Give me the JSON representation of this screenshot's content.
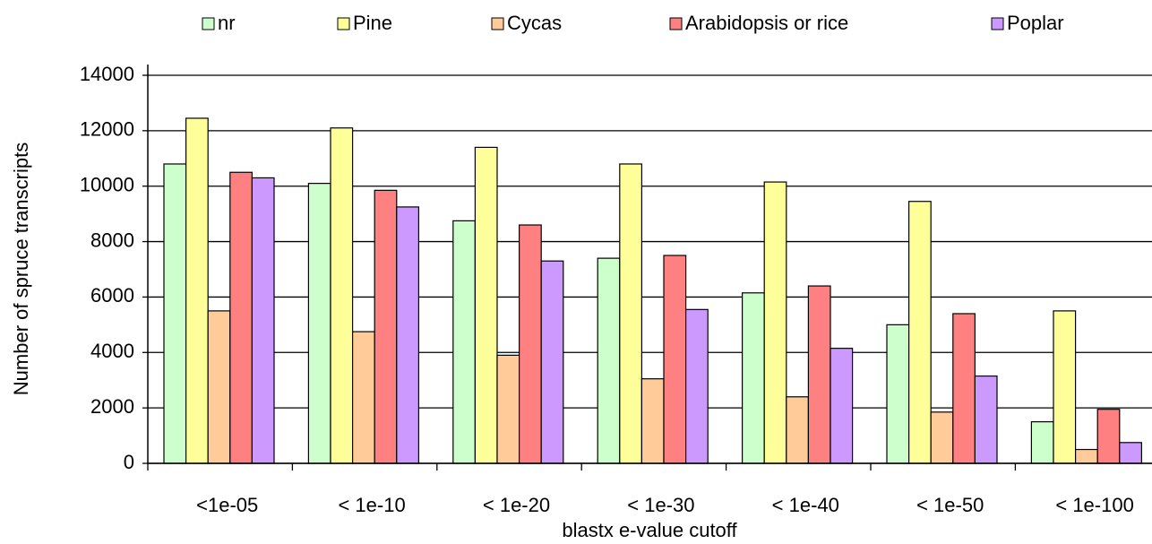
{
  "chart_data": {
    "type": "bar",
    "x_label": "blastx e-value cutoff",
    "y_label": "Number of spruce transcripts",
    "categories": [
      "<1e-05",
      "< 1e-10",
      "< 1e-20",
      "< 1e-30",
      "< 1e-40",
      "< 1e-50",
      "< 1e-100"
    ],
    "series": [
      {
        "name": "nr",
        "color": "#ccffcc",
        "values": [
          10800,
          10100,
          8750,
          7400,
          6150,
          5000,
          1500
        ]
      },
      {
        "name": "Pine",
        "color": "#ffff99",
        "values": [
          12450,
          12100,
          11400,
          10800,
          10150,
          9450,
          5500
        ]
      },
      {
        "name": "Cycas",
        "color": "#ffcc99",
        "values": [
          5500,
          4750,
          3900,
          3050,
          2400,
          1850,
          500
        ]
      },
      {
        "name": "Arabidopsis or rice",
        "color": "#ff8080",
        "values": [
          10500,
          9850,
          8600,
          7500,
          6400,
          5400,
          1950
        ]
      },
      {
        "name": "Poplar",
        "color": "#cc99ff",
        "values": [
          10300,
          9250,
          7300,
          5550,
          4150,
          3150,
          750
        ]
      }
    ],
    "ylim": [
      0,
      14000
    ],
    "yticks": [
      0,
      2000,
      4000,
      6000,
      8000,
      10000,
      12000,
      14000
    ],
    "grid": true,
    "legend": "top"
  }
}
